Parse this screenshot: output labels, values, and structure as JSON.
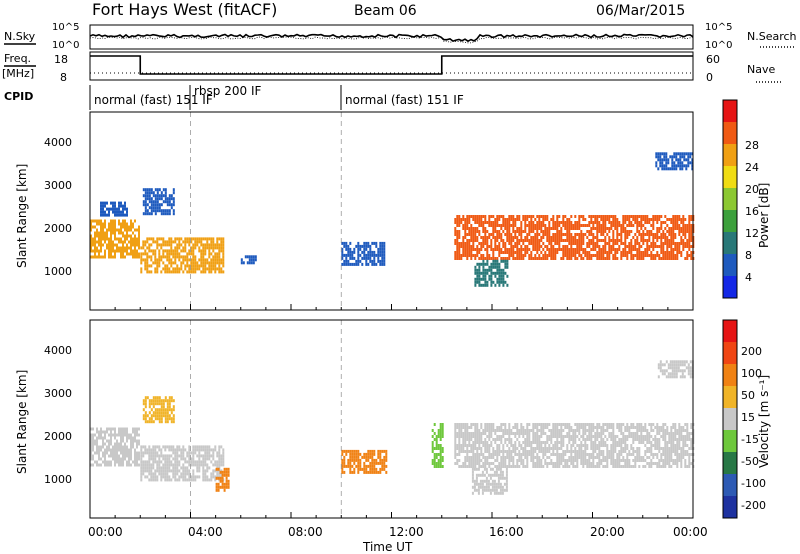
{
  "header": {
    "title": "Fort Hays West (fitACF)",
    "beam": "Beam 06",
    "date": "06/Mar/2015"
  },
  "summary_panels": {
    "nsky_label": "N.Sky",
    "nsearch_label": "N.Search",
    "noise_ticks": [
      "10^5",
      "10^0"
    ],
    "freq_label": "Freq.",
    "freq_unit": "[MHz]",
    "freq_ticks": [
      "18",
      "8"
    ],
    "nave_label": "Nave",
    "nave_ticks": [
      "60",
      "0"
    ],
    "cpid_label": "CPID",
    "cpid_entries": [
      {
        "label": "normal (fast) 151 IF",
        "start_hour": 0
      },
      {
        "label": "rbsp 200 IF",
        "start_hour": 4
      },
      {
        "label": "normal (fast) 151 IF",
        "start_hour": 10
      }
    ]
  },
  "axes": {
    "ylabel": "Slant Range [km]",
    "xlabel": "Time UT",
    "xticks": [
      "00:00",
      "04:00",
      "08:00",
      "12:00",
      "16:00",
      "20:00",
      "00:00"
    ],
    "xlim_hours": [
      0,
      24
    ],
    "yticks": [
      "1000",
      "2000",
      "3000",
      "4000"
    ],
    "ylim_km": [
      180,
      4600
    ]
  },
  "colorbars": {
    "power": {
      "label": "Power [dB]",
      "ticks": [
        "4",
        "8",
        "12",
        "16",
        "20",
        "24",
        "28"
      ],
      "colors": [
        "#1428e6",
        "#1e5abe",
        "#287878",
        "#3ca03c",
        "#8cc832",
        "#f0dc14",
        "#f0a014",
        "#f05a14",
        "#e61414"
      ]
    },
    "velocity": {
      "label": "Velocity [m s⁻¹]",
      "ticks": [
        "200",
        "100",
        "50",
        "15",
        "-15",
        "-50",
        "-100",
        "-200"
      ],
      "colors": [
        "#1e32a0",
        "#2d5ab4",
        "#287846",
        "#6ec83c",
        "#c8c8c8",
        "#f0b428",
        "#f08214",
        "#f04614",
        "#e61414"
      ]
    }
  },
  "chart_data": {
    "type": "heatmap",
    "x_unit": "hours UT",
    "y_unit": "km",
    "frequency_mhz": [
      {
        "start_hour": 0,
        "end_hour": 2,
        "value": 18
      },
      {
        "start_hour": 2,
        "end_hour": 14,
        "value": 8
      },
      {
        "start_hour": 14,
        "end_hour": 24,
        "value": 18
      }
    ],
    "power_features": [
      {
        "t0": 0.0,
        "t1": 1.95,
        "r0": 1350,
        "r1": 2200,
        "color": "#f0a014"
      },
      {
        "t0": 0.4,
        "t1": 1.5,
        "r0": 2300,
        "r1": 2600,
        "color": "#1e5abe"
      },
      {
        "t0": 2.0,
        "t1": 5.3,
        "r0": 1000,
        "r1": 1800,
        "color": "#f0a014"
      },
      {
        "t0": 2.1,
        "t1": 3.3,
        "r0": 2300,
        "r1": 2900,
        "color": "#1e5abe"
      },
      {
        "t0": 6.0,
        "t1": 6.6,
        "r0": 1200,
        "r1": 1400,
        "color": "#1e5abe"
      },
      {
        "t0": 10.0,
        "t1": 11.7,
        "r0": 1200,
        "r1": 1700,
        "color": "#1e5abe"
      },
      {
        "t0": 14.5,
        "t1": 24.0,
        "r0": 1300,
        "r1": 2300,
        "color": "#f05a14"
      },
      {
        "t0": 15.3,
        "t1": 16.6,
        "r0": 700,
        "r1": 1300,
        "color": "#287878"
      },
      {
        "t0": 22.5,
        "t1": 24.0,
        "r0": 3300,
        "r1": 3700,
        "color": "#1e5abe"
      }
    ],
    "velocity_features": [
      {
        "t0": 0.0,
        "t1": 1.95,
        "r0": 1350,
        "r1": 2200,
        "color": "#c8c8c8"
      },
      {
        "t0": 2.0,
        "t1": 5.3,
        "r0": 1000,
        "r1": 1800,
        "color": "#c8c8c8"
      },
      {
        "t0": 2.1,
        "t1": 3.3,
        "r0": 2300,
        "r1": 2900,
        "color": "#f0b428"
      },
      {
        "t0": 5.0,
        "t1": 5.5,
        "r0": 800,
        "r1": 1300,
        "color": "#f08214"
      },
      {
        "t0": 10.0,
        "t1": 11.8,
        "r0": 1200,
        "r1": 1700,
        "color": "#f08214"
      },
      {
        "t0": 13.6,
        "t1": 14.0,
        "r0": 1300,
        "r1": 2300,
        "color": "#6ec83c"
      },
      {
        "t0": 14.5,
        "t1": 24.0,
        "r0": 1300,
        "r1": 2300,
        "color": "#c8c8c8"
      },
      {
        "t0": 15.2,
        "t1": 16.6,
        "r0": 700,
        "r1": 1300,
        "color": "#c8c8c8"
      },
      {
        "t0": 22.6,
        "t1": 24.0,
        "r0": 3300,
        "r1": 3700,
        "color": "#c8c8c8"
      }
    ]
  }
}
